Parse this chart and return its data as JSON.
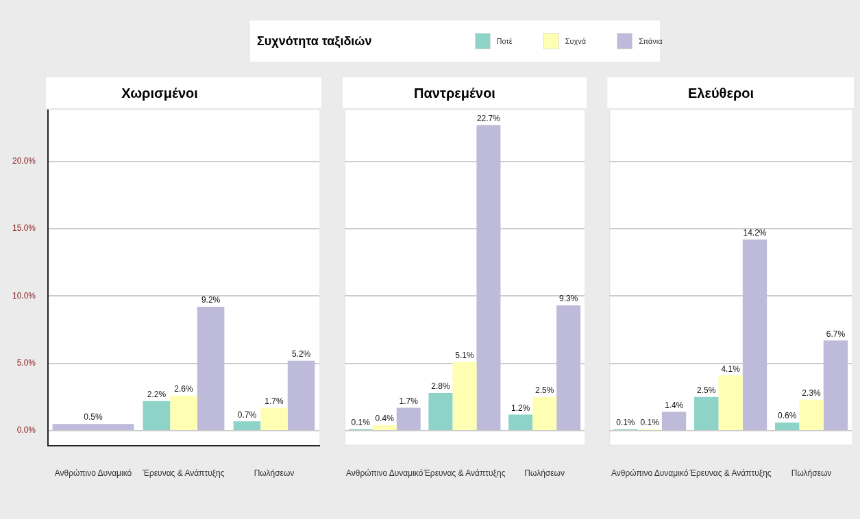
{
  "chart_data": [
    {
      "type": "bar",
      "title": "Χωρισμένοι",
      "legend_title": "Συχνότητα ταξιδιών",
      "legend": "top",
      "grid": "y",
      "categories": [
        "Ανθρώπινο Δυναμικό",
        "Έρευνας & Ανάπτυξης",
        "Πωλήσεων"
      ],
      "ylim": [
        -1.1,
        23.8
      ],
      "yticks": [
        {
          "value": 0,
          "label": "0.0%"
        },
        {
          "value": 5,
          "label": "5.0%"
        },
        {
          "value": 10,
          "label": "10.0%"
        },
        {
          "value": 15,
          "label": "15.0%"
        },
        {
          "value": 20,
          "label": "20.0%"
        }
      ],
      "series": [
        {
          "name": "Ποτέ",
          "color": "#8dd3c7",
          "values": [
            null,
            2.2,
            0.7
          ],
          "value_labels": [
            null,
            "2.2%",
            "0.7%"
          ]
        },
        {
          "name": "Συχνά",
          "color": "#ffffb3",
          "values": [
            null,
            2.6,
            1.7
          ],
          "value_labels": [
            null,
            "2.6%",
            "1.7%"
          ]
        },
        {
          "name": "Σπάνια",
          "color": "#bebada",
          "values": [
            0.5,
            9.2,
            5.2
          ],
          "value_labels": [
            "0.5%",
            "9.2%",
            "5.2%"
          ]
        }
      ]
    },
    {
      "type": "bar",
      "title": "Παντρεμένοι",
      "grid": "y",
      "tick_labels": "x",
      "categories": [
        "Ανθρώπινο Δυναμικό",
        "Έρευνας & Ανάπτυξης",
        "Πωλήσεων"
      ],
      "ylim": [
        -1.1,
        23.8
      ],
      "yticks": [
        0,
        5,
        10,
        15,
        20
      ],
      "series": [
        {
          "color": "#8dd3c7",
          "values": [
            0.1,
            2.8,
            1.2
          ],
          "value_labels": [
            "0.1%",
            "2.8%",
            "1.2%"
          ]
        },
        {
          "color": "#ffffb3",
          "values": [
            0.4,
            5.1,
            2.5
          ],
          "value_labels": [
            "0.4%",
            "5.1%",
            "2.5%"
          ]
        },
        {
          "color": "#bebada",
          "values": [
            1.7,
            22.7,
            9.3
          ],
          "value_labels": [
            "1.7%",
            "22.7%",
            "9.3%"
          ]
        }
      ]
    },
    {
      "type": "bar",
      "title": "Ελεύθεροι",
      "grid": "y",
      "tick_labels": "x",
      "categories": [
        "Ανθρώπινο Δυναμικό",
        "Έρευνας & Ανάπτυξης",
        "Πωλήσεων"
      ],
      "ylim": [
        -1.1,
        23.8
      ],
      "yticks": [
        0,
        5,
        10,
        15,
        20
      ],
      "series": [
        {
          "color": "#8dd3c7",
          "values": [
            0.1,
            2.5,
            0.6
          ],
          "value_labels": [
            "0.1%",
            "2.5%",
            "0.6%"
          ]
        },
        {
          "color": "#ffffb3",
          "values": [
            0.1,
            4.1,
            2.3
          ],
          "value_labels": [
            "0.1%",
            "4.1%",
            "2.3%"
          ]
        },
        {
          "color": "#bebada",
          "values": [
            1.4,
            14.2,
            6.7
          ],
          "value_labels": [
            "1.4%",
            "14.2%",
            "6.7%"
          ]
        }
      ]
    }
  ]
}
